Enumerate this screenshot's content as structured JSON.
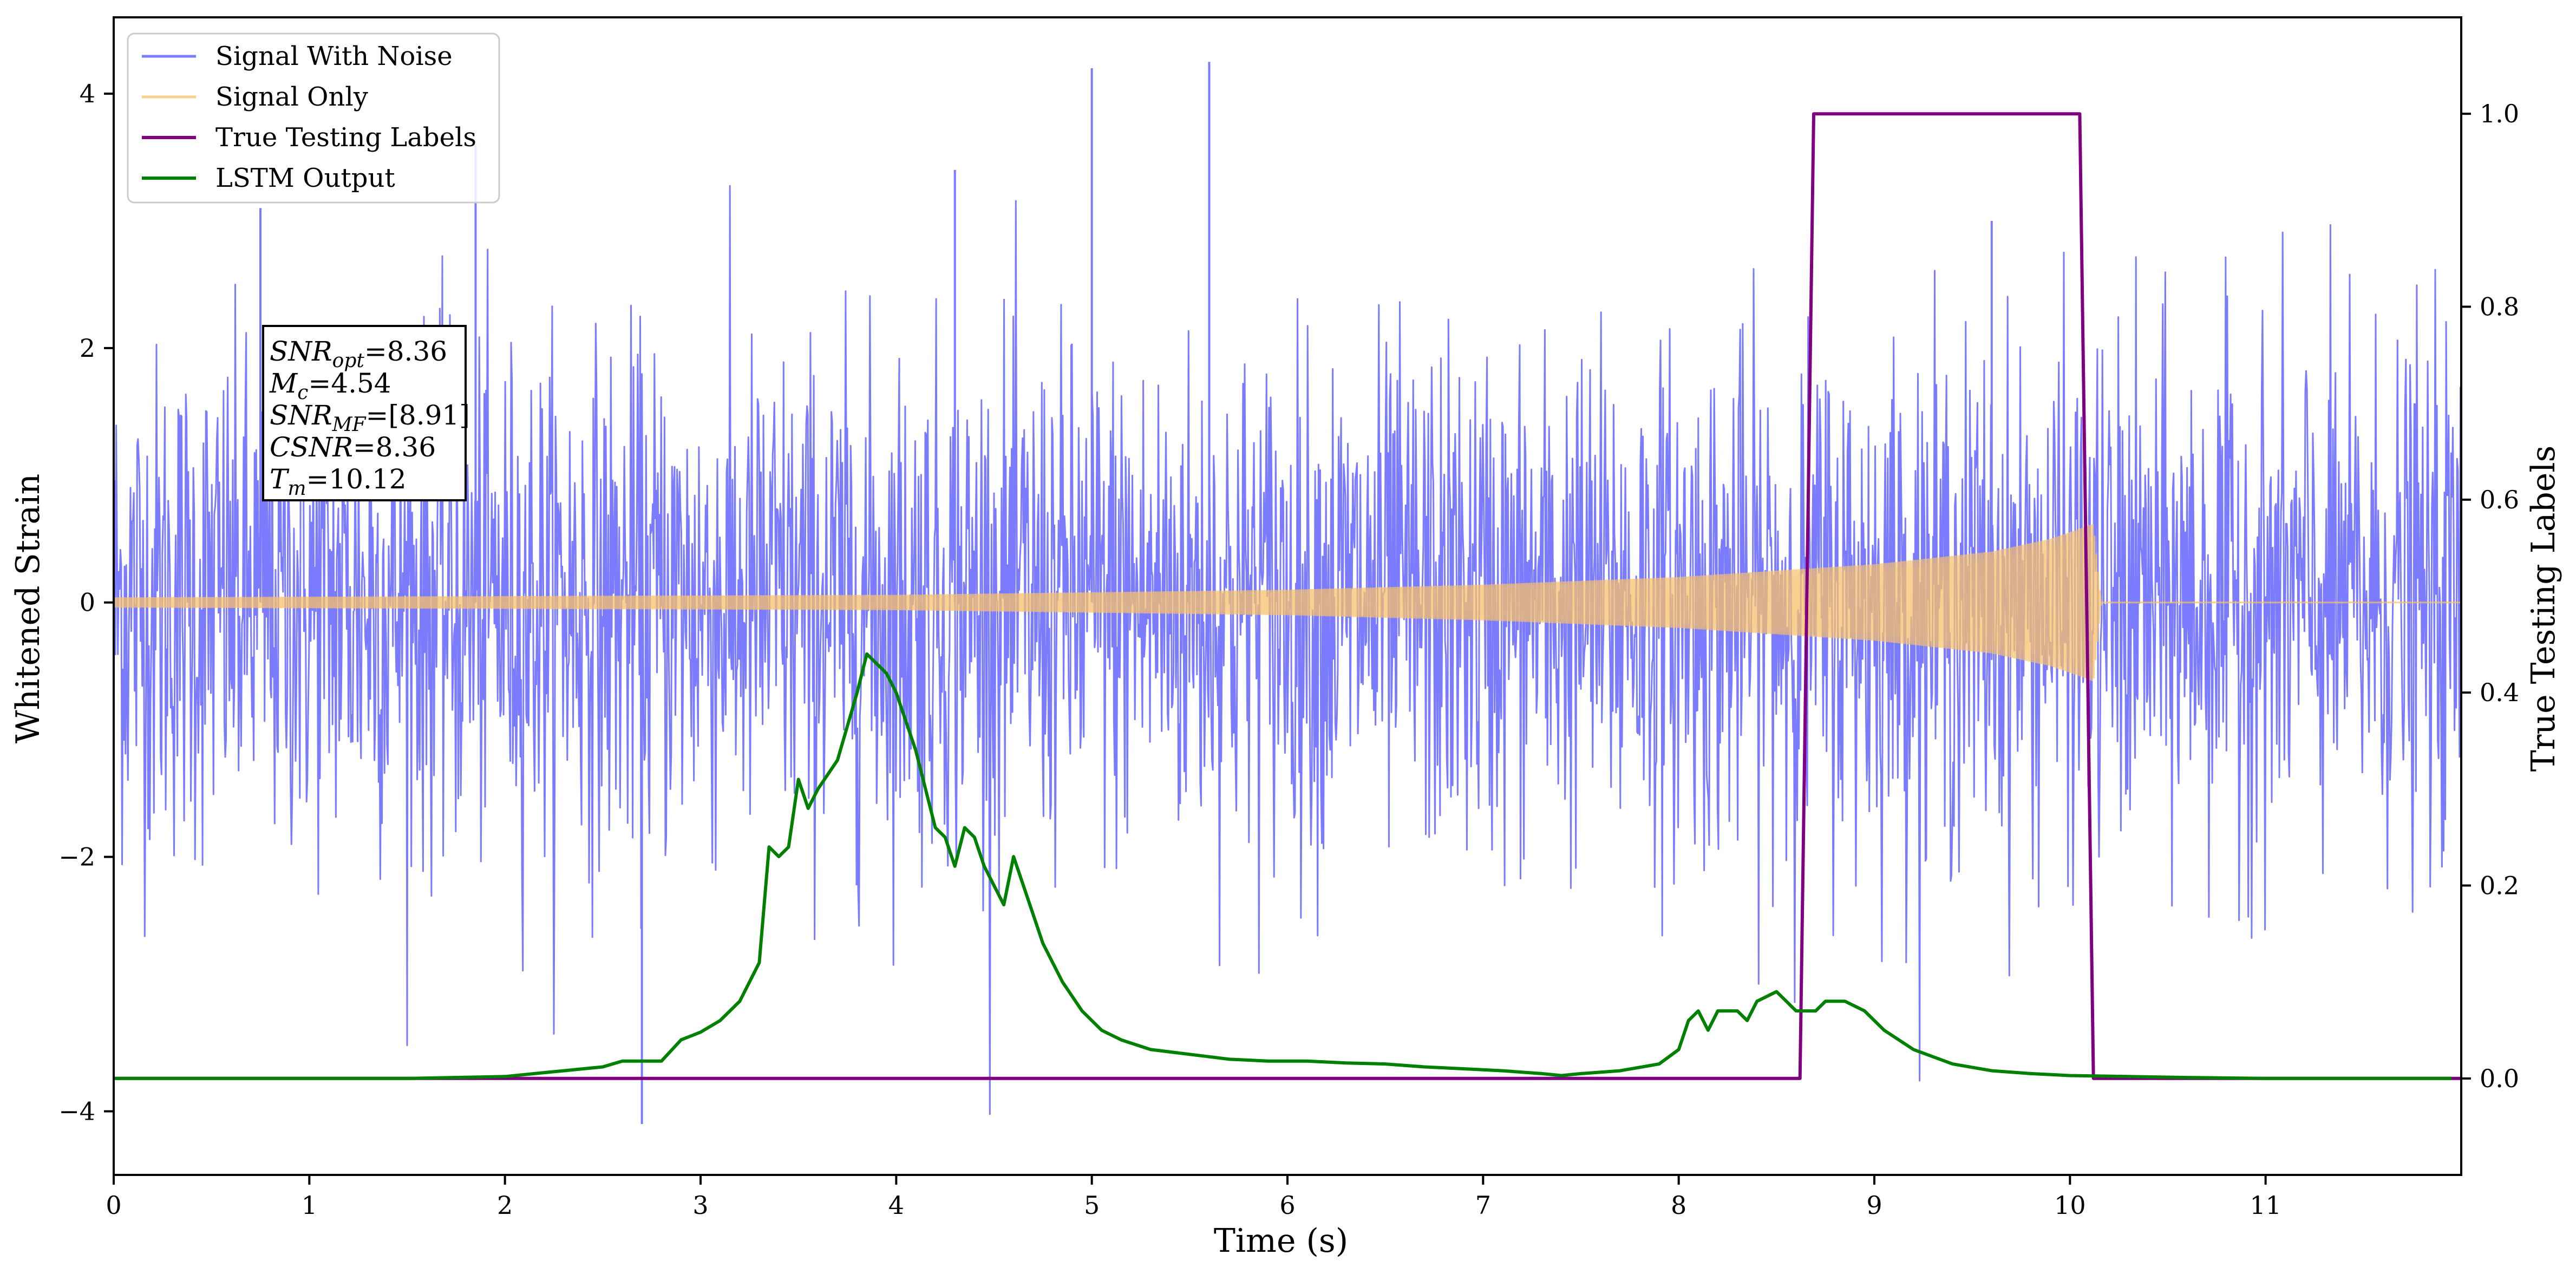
{
  "chart_data": {
    "type": "line",
    "xlabel": "Time (s)",
    "ylabel": "Whitened Strain",
    "ylabel_right": "True Testing Labels",
    "xlim": [
      0,
      12
    ],
    "ylim": [
      -4.5,
      4.6
    ],
    "ylim_right": [
      -0.1,
      1.1
    ],
    "x_ticks": [
      0,
      1,
      2,
      3,
      4,
      5,
      6,
      7,
      8,
      9,
      10,
      11
    ],
    "y_ticks": [
      -4,
      -2,
      0,
      2,
      4
    ],
    "y_ticks_right": [
      0.0,
      0.2,
      0.4,
      0.6,
      0.8,
      1.0
    ],
    "legend_position": "upper-left",
    "grid": false,
    "series": [
      {
        "name": "Signal With Noise",
        "axis": "left",
        "color": "#7b7bff",
        "style": "noise-band",
        "band_sigma": 1.0,
        "band_max": 4.25,
        "band_min": -4.1,
        "notable_spikes": [
          [
            2.7,
            -4.1
          ],
          [
            5.0,
            4.2
          ],
          [
            5.6,
            4.25
          ],
          [
            0.75,
            3.1
          ],
          [
            1.85,
            3.6
          ],
          [
            4.3,
            3.4
          ],
          [
            9.6,
            3.0
          ]
        ]
      },
      {
        "name": "Signal Only",
        "axis": "left",
        "color": "#f7c06a",
        "style": "chirp",
        "envelope": [
          [
            0,
            0.04
          ],
          [
            2,
            0.05
          ],
          [
            4,
            0.06
          ],
          [
            6,
            0.1
          ],
          [
            7,
            0.14
          ],
          [
            8,
            0.2
          ],
          [
            9,
            0.3
          ],
          [
            9.6,
            0.4
          ],
          [
            9.9,
            0.5
          ],
          [
            10.05,
            0.58
          ],
          [
            10.12,
            0.62
          ],
          [
            10.16,
            0.0
          ],
          [
            12,
            0.0
          ]
        ],
        "merger_time": 10.12
      },
      {
        "name": "True Testing Labels",
        "axis": "right",
        "color": "#800080",
        "x": [
          0,
          8.62,
          8.69,
          10.05,
          10.12,
          12
        ],
        "y": [
          0,
          0,
          1,
          1,
          0,
          0
        ]
      },
      {
        "name": "LSTM Output",
        "axis": "right",
        "color": "#008000",
        "x": [
          0,
          1.5,
          2.0,
          2.2,
          2.3,
          2.4,
          2.5,
          2.6,
          2.7,
          2.8,
          2.9,
          3.0,
          3.1,
          3.2,
          3.3,
          3.35,
          3.4,
          3.45,
          3.5,
          3.55,
          3.6,
          3.7,
          3.8,
          3.85,
          3.9,
          3.95,
          4.0,
          4.05,
          4.1,
          4.15,
          4.2,
          4.25,
          4.3,
          4.35,
          4.4,
          4.45,
          4.5,
          4.55,
          4.6,
          4.65,
          4.7,
          4.75,
          4.85,
          4.95,
          5.05,
          5.15,
          5.3,
          5.5,
          5.7,
          5.9,
          6.1,
          6.3,
          6.5,
          6.7,
          6.9,
          7.1,
          7.3,
          7.4,
          7.5,
          7.7,
          7.9,
          8.0,
          8.05,
          8.1,
          8.15,
          8.2,
          8.25,
          8.3,
          8.35,
          8.4,
          8.5,
          8.6,
          8.7,
          8.75,
          8.85,
          8.95,
          9.05,
          9.2,
          9.4,
          9.6,
          9.8,
          10.0,
          10.3,
          10.6,
          11.0,
          11.5,
          11.95
        ],
        "y": [
          0.0,
          0.0,
          0.002,
          0.006,
          0.008,
          0.01,
          0.012,
          0.018,
          0.018,
          0.018,
          0.04,
          0.048,
          0.06,
          0.08,
          0.12,
          0.24,
          0.23,
          0.24,
          0.31,
          0.28,
          0.3,
          0.33,
          0.4,
          0.44,
          0.43,
          0.42,
          0.4,
          0.37,
          0.34,
          0.3,
          0.26,
          0.25,
          0.22,
          0.26,
          0.25,
          0.22,
          0.2,
          0.18,
          0.23,
          0.2,
          0.17,
          0.14,
          0.1,
          0.07,
          0.05,
          0.04,
          0.03,
          0.025,
          0.02,
          0.018,
          0.018,
          0.016,
          0.015,
          0.012,
          0.01,
          0.008,
          0.005,
          0.003,
          0.005,
          0.008,
          0.015,
          0.03,
          0.06,
          0.07,
          0.05,
          0.07,
          0.07,
          0.07,
          0.06,
          0.08,
          0.09,
          0.07,
          0.07,
          0.08,
          0.08,
          0.07,
          0.05,
          0.03,
          0.015,
          0.008,
          0.005,
          0.003,
          0.002,
          0.001,
          0.0,
          0.0,
          0.0
        ]
      }
    ],
    "annotation": {
      "lines": [
        {
          "base": "SNR",
          "sub": "opt",
          "value": "=8.36"
        },
        {
          "base": "M",
          "sub": "c",
          "value": "=4.54"
        },
        {
          "base": "SNR",
          "sub": "MF",
          "value": "=[8.91]"
        },
        {
          "base": "CSNR",
          "sub": "",
          "value": "=8.36"
        },
        {
          "base": "T",
          "sub": "m",
          "value": "=10.12"
        }
      ]
    }
  }
}
